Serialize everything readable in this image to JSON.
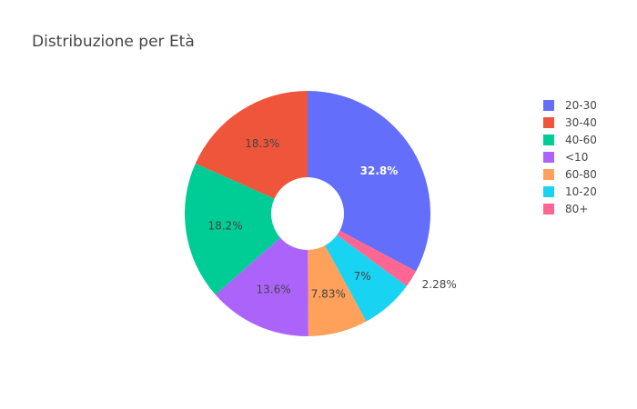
{
  "chart_data": {
    "type": "pie",
    "title": "Distribuzione per Età",
    "hole": true,
    "categories": [
      "20-30",
      "30-40",
      "40-60",
      "<10",
      "60-80",
      "10-20",
      "80+"
    ],
    "values": [
      32.8,
      18.3,
      18.2,
      13.6,
      7.83,
      7.0,
      2.28
    ],
    "value_labels": [
      "32.8%",
      "18.3%",
      "18.2%",
      "13.6%",
      "7.83%",
      "7%",
      "2.28%"
    ],
    "slice_order": [
      "20-30",
      "80+",
      "10-20",
      "60-80",
      "<10",
      "40-60",
      "30-40"
    ],
    "colors": {
      "20-30": "#636efa",
      "30-40": "#ef553b",
      "40-60": "#00cc96",
      "<10": "#ab63fa",
      "60-80": "#ffa15a",
      "10-20": "#19d3f3",
      "80+": "#ff6692"
    },
    "label_colors": {
      "20-30": "#ffffff",
      "30-40": "#444444",
      "40-60": "#444444",
      "<10": "#444444",
      "60-80": "#444444",
      "10-20": "#444444",
      "80+": "#444444"
    },
    "legend": {
      "position": "top-right",
      "entries": [
        "20-30",
        "30-40",
        "40-60",
        "<10",
        "60-80",
        "10-20",
        "80+"
      ]
    }
  }
}
